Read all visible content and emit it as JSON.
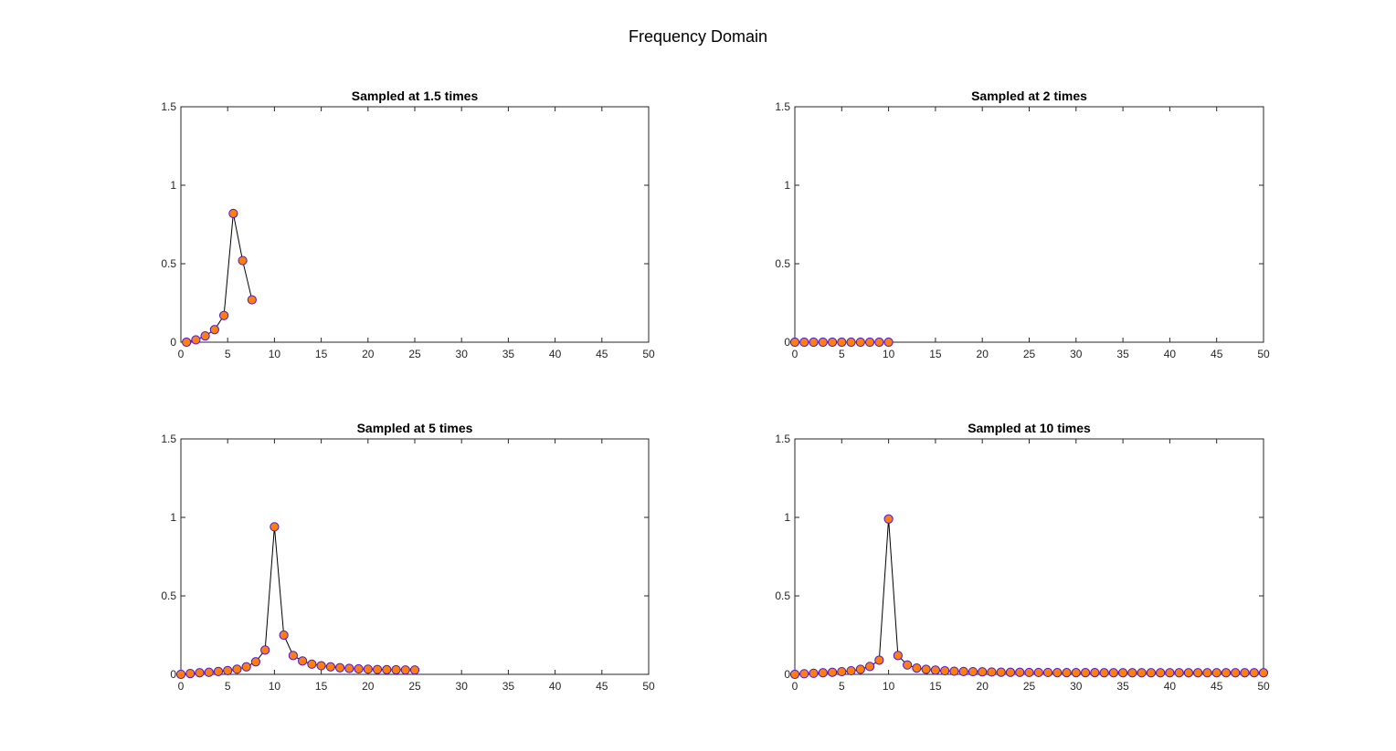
{
  "figure": {
    "title": "Frequency Domain"
  },
  "colors": {
    "marker_face": "#ff7f0e",
    "marker_edge": "#4a14d8",
    "line": "#000000",
    "axes": "#262626"
  },
  "chart_data": [
    {
      "type": "line",
      "title": "Sampled at 1.5 times",
      "xlabel": "",
      "ylabel": "",
      "xlim": [
        0,
        50
      ],
      "ylim": [
        0,
        1.5
      ],
      "xticks": [
        0,
        5,
        10,
        15,
        20,
        25,
        30,
        35,
        40,
        45,
        50
      ],
      "yticks": [
        0,
        0.5,
        1,
        1.5
      ],
      "xtick_labels": [
        "0",
        "5",
        "10",
        "15",
        "20",
        "25",
        "30",
        "35",
        "40",
        "45",
        "50"
      ],
      "ytick_labels": [
        "0",
        "0.5",
        "1",
        "1.5"
      ],
      "grid": false,
      "series": [
        {
          "x": [
            0.6,
            1.6,
            2.6,
            3.6,
            4.6,
            5.6,
            6.6,
            7.6
          ],
          "y": [
            0.0,
            0.015,
            0.04,
            0.08,
            0.17,
            0.82,
            0.52,
            0.27
          ]
        }
      ]
    },
    {
      "type": "line",
      "title": "Sampled at 2 times",
      "xlabel": "",
      "ylabel": "",
      "xlim": [
        0,
        50
      ],
      "ylim": [
        0,
        1.5
      ],
      "xticks": [
        0,
        5,
        10,
        15,
        20,
        25,
        30,
        35,
        40,
        45,
        50
      ],
      "yticks": [
        0,
        0.5,
        1,
        1.5
      ],
      "xtick_labels": [
        "0",
        "5",
        "10",
        "15",
        "20",
        "25",
        "30",
        "35",
        "40",
        "45",
        "50"
      ],
      "ytick_labels": [
        "0",
        "0.5",
        "1",
        "1.5"
      ],
      "grid": false,
      "series": [
        {
          "x": [
            0,
            1,
            2,
            3,
            4,
            5,
            6,
            7,
            8,
            9,
            10
          ],
          "y": [
            0,
            0,
            0,
            0,
            0,
            0,
            0,
            0,
            0,
            0,
            0
          ]
        }
      ]
    },
    {
      "type": "line",
      "title": "Sampled at 5 times",
      "xlabel": "",
      "ylabel": "",
      "xlim": [
        0,
        50
      ],
      "ylim": [
        0,
        1.5
      ],
      "xticks": [
        0,
        5,
        10,
        15,
        20,
        25,
        30,
        35,
        40,
        45,
        50
      ],
      "yticks": [
        0,
        0.5,
        1,
        1.5
      ],
      "xtick_labels": [
        "0",
        "5",
        "10",
        "15",
        "20",
        "25",
        "30",
        "35",
        "40",
        "45",
        "50"
      ],
      "ytick_labels": [
        "0",
        "0.5",
        "1",
        "1.5"
      ],
      "grid": false,
      "series": [
        {
          "x": [
            0,
            1,
            2,
            3,
            4,
            5,
            6,
            7,
            8,
            9,
            10,
            11,
            12,
            13,
            14,
            15,
            16,
            17,
            18,
            19,
            20,
            21,
            22,
            23,
            24,
            25
          ],
          "y": [
            0.0,
            0.005,
            0.01,
            0.013,
            0.018,
            0.024,
            0.033,
            0.048,
            0.08,
            0.155,
            0.94,
            0.25,
            0.12,
            0.085,
            0.065,
            0.055,
            0.048,
            0.042,
            0.038,
            0.035,
            0.033,
            0.031,
            0.03,
            0.029,
            0.028,
            0.028
          ]
        }
      ]
    },
    {
      "type": "line",
      "title": "Sampled at 10 times",
      "xlabel": "",
      "ylabel": "",
      "xlim": [
        0,
        50
      ],
      "ylim": [
        0,
        1.5
      ],
      "xticks": [
        0,
        5,
        10,
        15,
        20,
        25,
        30,
        35,
        40,
        45,
        50
      ],
      "yticks": [
        0,
        0.5,
        1,
        1.5
      ],
      "xtick_labels": [
        "0",
        "5",
        "10",
        "15",
        "20",
        "25",
        "30",
        "35",
        "40",
        "45",
        "50"
      ],
      "ytick_labels": [
        "0",
        "0.5",
        "1",
        "1.5"
      ],
      "grid": false,
      "series": [
        {
          "x": [
            0,
            1,
            2,
            3,
            4,
            5,
            6,
            7,
            8,
            9,
            10,
            11,
            12,
            13,
            14,
            15,
            16,
            17,
            18,
            19,
            20,
            21,
            22,
            23,
            24,
            25,
            26,
            27,
            28,
            29,
            30,
            31,
            32,
            33,
            34,
            35,
            36,
            37,
            38,
            39,
            40,
            41,
            42,
            43,
            44,
            45,
            46,
            47,
            48,
            49,
            50
          ],
          "y": [
            0.0,
            0.004,
            0.007,
            0.01,
            0.013,
            0.017,
            0.023,
            0.032,
            0.05,
            0.09,
            0.99,
            0.12,
            0.06,
            0.04,
            0.032,
            0.027,
            0.023,
            0.02,
            0.018,
            0.017,
            0.016,
            0.015,
            0.014,
            0.013,
            0.013,
            0.012,
            0.012,
            0.012,
            0.011,
            0.011,
            0.011,
            0.011,
            0.011,
            0.01,
            0.01,
            0.01,
            0.01,
            0.01,
            0.01,
            0.01,
            0.01,
            0.01,
            0.01,
            0.01,
            0.01,
            0.01,
            0.01,
            0.01,
            0.01,
            0.01,
            0.01
          ]
        }
      ]
    }
  ]
}
